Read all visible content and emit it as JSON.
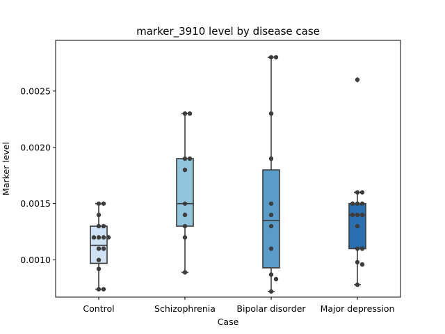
{
  "chart_data": {
    "type": "box",
    "title": "marker_3910 level by disease case",
    "xlabel": "Case",
    "ylabel": "Marker level",
    "categories": [
      "Control",
      "Schizophrenia",
      "Bipolar disorder",
      "Major depression"
    ],
    "ylim": [
      0.00067,
      0.00295
    ],
    "yticks": [
      0.001,
      0.0015,
      0.002,
      0.0025
    ],
    "ytick_labels": [
      "0.0010",
      "0.0015",
      "0.0020",
      "0.0025"
    ],
    "grid": false,
    "legend": "none",
    "colors": [
      "#cfe1f2",
      "#93c4de",
      "#5a9cc9",
      "#2a6fb0"
    ],
    "line_color": "#3a3a3a",
    "boxes": [
      {
        "category": "Control",
        "whisker_low": 0.00074,
        "q1": 0.00097,
        "median": 0.00113,
        "q3": 0.0013,
        "whisker_high": 0.0015,
        "outliers": []
      },
      {
        "category": "Schizophrenia",
        "whisker_low": 0.00089,
        "q1": 0.0013,
        "median": 0.0015,
        "q3": 0.0019,
        "whisker_high": 0.0023,
        "outliers": []
      },
      {
        "category": "Bipolar disorder",
        "whisker_low": 0.00072,
        "q1": 0.00093,
        "median": 0.00135,
        "q3": 0.0018,
        "whisker_high": 0.0028,
        "outliers": []
      },
      {
        "category": "Major depression",
        "whisker_low": 0.00078,
        "q1": 0.0011,
        "median": 0.0014,
        "q3": 0.0015,
        "whisker_high": 0.0016,
        "outliers": [
          0.0026
        ]
      }
    ],
    "points": [
      {
        "category": "Control",
        "values": [
          0.0015,
          0.0015,
          0.0014,
          0.0013,
          0.0013,
          0.0012,
          0.0012,
          0.0012,
          0.0012,
          0.0011,
          0.0011,
          0.001,
          0.00092,
          0.00074,
          0.00074
        ]
      },
      {
        "category": "Schizophrenia",
        "values": [
          0.0023,
          0.0023,
          0.0019,
          0.0019,
          0.0018,
          0.0015,
          0.0014,
          0.0013,
          0.0012,
          0.00089
        ]
      },
      {
        "category": "Bipolar disorder",
        "values": [
          0.0028,
          0.0028,
          0.0023,
          0.0019,
          0.0015,
          0.0014,
          0.0013,
          0.0011,
          0.00087,
          0.00083,
          0.00072
        ]
      },
      {
        "category": "Major depression",
        "values": [
          0.0026,
          0.0016,
          0.0016,
          0.0015,
          0.0015,
          0.0015,
          0.0014,
          0.0014,
          0.0014,
          0.0013,
          0.0011,
          0.0011,
          0.00098,
          0.00096,
          0.00078
        ]
      }
    ]
  }
}
